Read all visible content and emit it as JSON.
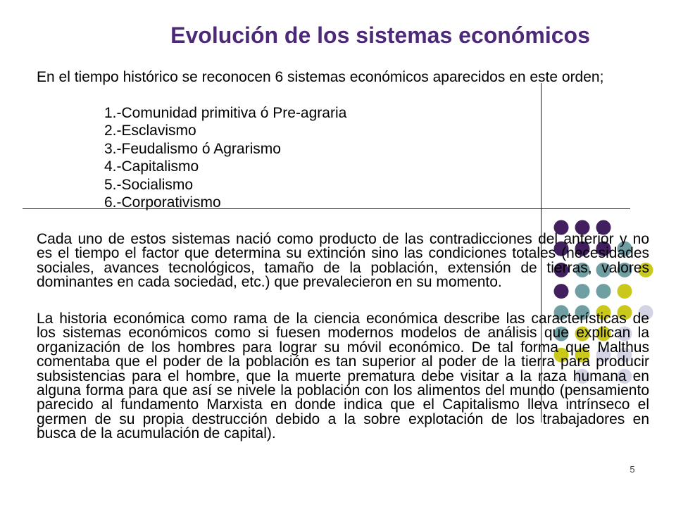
{
  "slide": {
    "title": "Evolución de los sistemas económicos",
    "intro": "En el tiempo histórico se reconocen 6 sistemas económicos aparecidos en este orden;",
    "list": [
      "1.-Comunidad primitiva ó Pre-agraria",
      "2.-Esclavismo",
      "3.-Feudalismo ó Agrarismo",
      "4.-Capitalismo",
      "5.-Socialismo",
      "6.-Corporativismo"
    ],
    "paragraph_1": [
      "Cada uno de estos sistemas nació como producto de las contradicciones del anterior y no",
      "es el tiempo el factor que determina su extinción sino las condiciones totales (necesidades",
      "sociales, avances tecnológicos, tamaño de la población, extensión de tierras, valores",
      "dominantes en cada sociedad, etc.) que prevalecieron en su momento."
    ],
    "paragraph_2": [
      "La historia económica como rama de la ciencia económica describe las características de",
      "los sistemas económicos como si fuesen modernos modelos de análisis que explican la",
      "organización de los hombres para lograr su móvil económico. De tal forma que Malthus",
      "comentaba que el poder de la población es tan superior al poder de la tierra para producir",
      "subsistencias para el hombre, que la muerte prematura debe visitar a la raza humana en",
      "alguna forma para que así se nivele la población con los alimentos del mundo (pensamiento",
      "parecido al fundamento Marxista en donde indica que el Capitalismo lleva intrínseco el",
      "germen de su propia destrucción debido a la sobre explotación de los trabajadores en",
      "busca de la acumulación de capital)."
    ],
    "page_number": "5"
  },
  "theme": {
    "title_color": "#4d2a78",
    "text_color": "#000000",
    "line_color": "#1a1a1a",
    "page_number_color": "#404040",
    "dot_colors": {
      "purple": "#42205f",
      "teal": "#6f9ea3",
      "yellow": "#cbc81c",
      "lavender": "#d2d4e6"
    }
  }
}
